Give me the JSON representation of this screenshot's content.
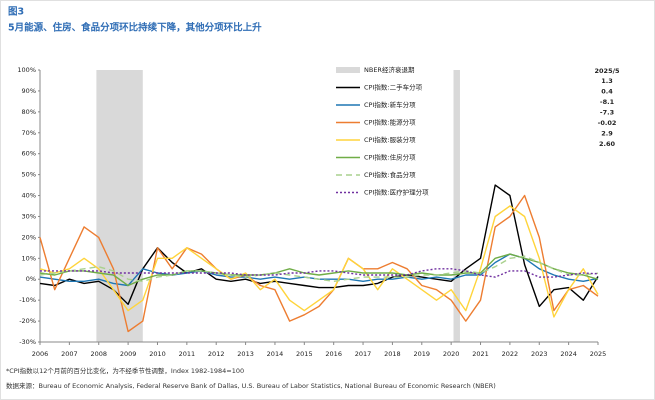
{
  "chart_data": {
    "type": "line",
    "figure_label": "图3",
    "title": "5月能源、住房、食品分项环比持续下降，其他分项环比上升",
    "footnote": "*CPI指数以12个月前的百分比变化，为不经季节性调整，Index 1982-1984=100",
    "source": "数据来源：Bureau of Economic Analysis, Federal Reserve Bank of Dallas, U.S. Bureau of Labor Statistics, National Bureau of Economic Research (NBER)",
    "latest_header": "2025/5",
    "recession": {
      "name": "NBER经济衰退期",
      "color": "#d9d9d9",
      "periods": [
        [
          2007.92,
          2009.5
        ],
        [
          2020.08,
          2020.3
        ]
      ]
    },
    "x": [
      2006,
      2006.5,
      2007,
      2007.5,
      2008,
      2008.5,
      2009,
      2009.5,
      2010,
      2010.5,
      2011,
      2011.5,
      2012,
      2012.5,
      2013,
      2013.5,
      2014,
      2014.5,
      2015,
      2015.5,
      2016,
      2016.5,
      2017,
      2017.5,
      2018,
      2018.5,
      2019,
      2019.5,
      2020,
      2020.5,
      2021,
      2021.5,
      2022,
      2022.5,
      2023,
      2023.5,
      2024,
      2024.5,
      2025
    ],
    "series": [
      {
        "name": "CPI指数:二手车分项",
        "color": "#000000",
        "dash": "",
        "latest": "1.3",
        "values": [
          -2,
          -3,
          0,
          -2,
          -1,
          -5,
          -12,
          5,
          15,
          8,
          3,
          5,
          0,
          -1,
          0,
          -2,
          -1,
          -2,
          -3,
          -4,
          -4,
          -3,
          -3,
          -2,
          1,
          2,
          1,
          0,
          -1,
          5,
          10,
          45,
          40,
          7,
          -13,
          -5,
          -4,
          -10,
          1.3
        ]
      },
      {
        "name": "CPI指数:新车分项",
        "color": "#1f77b4",
        "dash": "",
        "latest": "0.4",
        "values": [
          1,
          0,
          -1,
          -1,
          0,
          -2,
          -3,
          5,
          3,
          2,
          3,
          4,
          2,
          1,
          1,
          0,
          1,
          0,
          1,
          0,
          0,
          0,
          -1,
          0,
          0,
          1,
          0,
          1,
          0,
          2,
          2,
          8,
          12,
          10,
          5,
          2,
          0,
          -1,
          0.4
        ]
      },
      {
        "name": "CPI指数:能源分项",
        "color": "#ed7d31",
        "dash": "",
        "latest": "-8.1",
        "values": [
          20,
          -5,
          10,
          25,
          20,
          5,
          -25,
          -20,
          15,
          5,
          15,
          12,
          5,
          0,
          2,
          -3,
          -5,
          -20,
          -17,
          -13,
          -5,
          10,
          5,
          5,
          8,
          5,
          -3,
          -5,
          -10,
          -20,
          -10,
          25,
          30,
          40,
          20,
          -15,
          -5,
          -3,
          -8.1
        ]
      },
      {
        "name": "CPI指数:服装分项",
        "color": "#ffd43b",
        "dash": "",
        "latest": "-7.3",
        "values": [
          5,
          3,
          5,
          10,
          5,
          -5,
          -15,
          -10,
          10,
          10,
          15,
          10,
          5,
          0,
          3,
          -5,
          0,
          -10,
          -15,
          -10,
          -5,
          10,
          5,
          -5,
          5,
          0,
          -5,
          -10,
          -5,
          -15,
          5,
          30,
          35,
          30,
          10,
          -18,
          -5,
          5,
          -7.3
        ]
      },
      {
        "name": "CPI指数:住房分项",
        "color": "#70ad47",
        "dash": "",
        "latest": "-0.02",
        "values": [
          3,
          2,
          4,
          4,
          3,
          2,
          -3,
          0,
          2,
          2,
          4,
          4,
          3,
          2,
          2,
          2,
          3,
          5,
          3,
          2,
          3,
          4,
          3,
          3,
          3,
          2,
          3,
          2,
          2,
          3,
          3,
          10,
          12,
          10,
          8,
          5,
          3,
          2,
          -0.02
        ]
      },
      {
        "name": "CPI指数:食品分项",
        "color": "#a9d18e",
        "dash": "6 4",
        "latest": "2.9",
        "values": [
          2,
          3,
          4,
          5,
          6,
          4,
          0,
          -1,
          1,
          2,
          4,
          4,
          3,
          2,
          1,
          2,
          3,
          2,
          1,
          0,
          -1,
          0,
          1,
          1,
          1,
          1,
          2,
          2,
          3,
          4,
          3,
          6,
          10,
          11,
          8,
          5,
          2,
          2,
          2.9
        ]
      },
      {
        "name": "CPI指数:医疗护理分项",
        "color": "#7030a0",
        "dash": "2 2",
        "latest": "2.60",
        "values": [
          4,
          4,
          4,
          4,
          4,
          3,
          3,
          3,
          3,
          3,
          3,
          3,
          3,
          3,
          2,
          2,
          2,
          3,
          3,
          4,
          4,
          3,
          2,
          2,
          2,
          2,
          4,
          5,
          5,
          4,
          2,
          1,
          4,
          4,
          1,
          1,
          2,
          3,
          2.6
        ]
      }
    ],
    "xlim": [
      2006,
      2025
    ],
    "xticks": [
      2006,
      2007,
      2008,
      2009,
      2010,
      2011,
      2012,
      2013,
      2014,
      2015,
      2016,
      2017,
      2018,
      2019,
      2020,
      2021,
      2022,
      2023,
      2024,
      2025
    ],
    "ylim": [
      -30,
      100
    ],
    "yticks": [
      {
        "value": -30,
        "label": "-30%"
      },
      {
        "value": -20,
        "label": "-20%"
      },
      {
        "value": -10,
        "label": "-10%"
      },
      {
        "value": 0,
        "label": "0%"
      },
      {
        "value": 10,
        "label": "10%"
      },
      {
        "value": 20,
        "label": "20%"
      },
      {
        "value": 30,
        "label": "30%"
      },
      {
        "value": 40,
        "label": "40%"
      },
      {
        "value": 50,
        "label": "50%"
      },
      {
        "value": 60,
        "label": "60%"
      },
      {
        "value": 70,
        "label": "70%"
      },
      {
        "value": 80,
        "label": "80%"
      },
      {
        "value": 90,
        "label": "90%"
      },
      {
        "value": 100,
        "label": "100%"
      }
    ]
  }
}
